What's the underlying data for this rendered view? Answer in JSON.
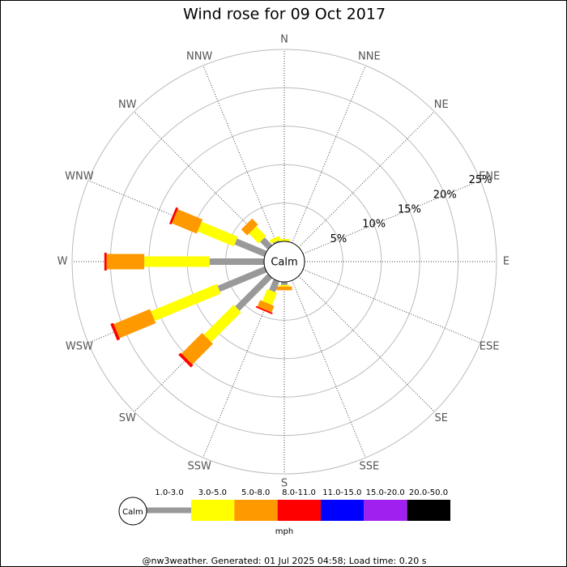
{
  "chart_data": {
    "type": "windrose",
    "title": "Wind rose for 09 Oct 2017",
    "directions": [
      "N",
      "NNE",
      "NE",
      "ENE",
      "E",
      "ESE",
      "SE",
      "SSE",
      "S",
      "SSW",
      "SW",
      "WSW",
      "W",
      "WNW",
      "NW",
      "NNW"
    ],
    "calm_label": "Calm",
    "rlim": [
      0,
      25
    ],
    "rticks": [
      {
        "value": 5,
        "label": "5%"
      },
      {
        "value": 10,
        "label": "10%"
      },
      {
        "value": 15,
        "label": "15%"
      },
      {
        "value": 20,
        "label": "20%"
      },
      {
        "value": 25,
        "label": "25%"
      }
    ],
    "units": "mph",
    "series": [
      {
        "name": "1.0-3.0",
        "color": "#999999",
        "values": [
          0,
          0,
          0,
          0,
          0,
          0,
          0,
          0,
          0.4,
          1.5,
          6.0,
          6.6,
          7.1,
          4.2,
          1.4,
          0.2
        ]
      },
      {
        "name": "3.0-5.0",
        "color": "#ffff00",
        "values": [
          0.3,
          0,
          0,
          0,
          0,
          0,
          0,
          0,
          0.2,
          1.7,
          5.5,
          9.3,
          8.5,
          5.1,
          1.8,
          0.5
        ]
      },
      {
        "name": "5.0-8.0",
        "color": "#ff9900",
        "values": [
          0,
          0,
          0,
          0,
          0,
          0,
          0,
          0,
          0.5,
          0.9,
          3.8,
          5.1,
          4.9,
          3.5,
          1.1,
          0
        ]
      },
      {
        "name": "8.0-11.0",
        "color": "#ff0000",
        "values": [
          0,
          0,
          0,
          0,
          0,
          0,
          0,
          0,
          0,
          0.2,
          0.4,
          0.4,
          0.3,
          0.3,
          0,
          0
        ]
      },
      {
        "name": "11.0-15.0",
        "color": "#0000ff",
        "values": [
          0,
          0,
          0,
          0,
          0,
          0,
          0,
          0,
          0,
          0,
          0,
          0,
          0,
          0,
          0,
          0
        ]
      },
      {
        "name": "15.0-20.0",
        "color": "#a020f0",
        "values": [
          0,
          0,
          0,
          0,
          0,
          0,
          0,
          0,
          0,
          0,
          0,
          0,
          0,
          0,
          0,
          0
        ]
      },
      {
        "name": "20.0-50.0",
        "color": "#000000",
        "values": [
          0,
          0,
          0,
          0,
          0,
          0,
          0,
          0,
          0,
          0,
          0,
          0,
          0,
          0,
          0,
          0
        ]
      }
    ],
    "footer": "@nw3weather. Generated: 01 Jul 2025 04:58; Load time: 0.20 s"
  }
}
